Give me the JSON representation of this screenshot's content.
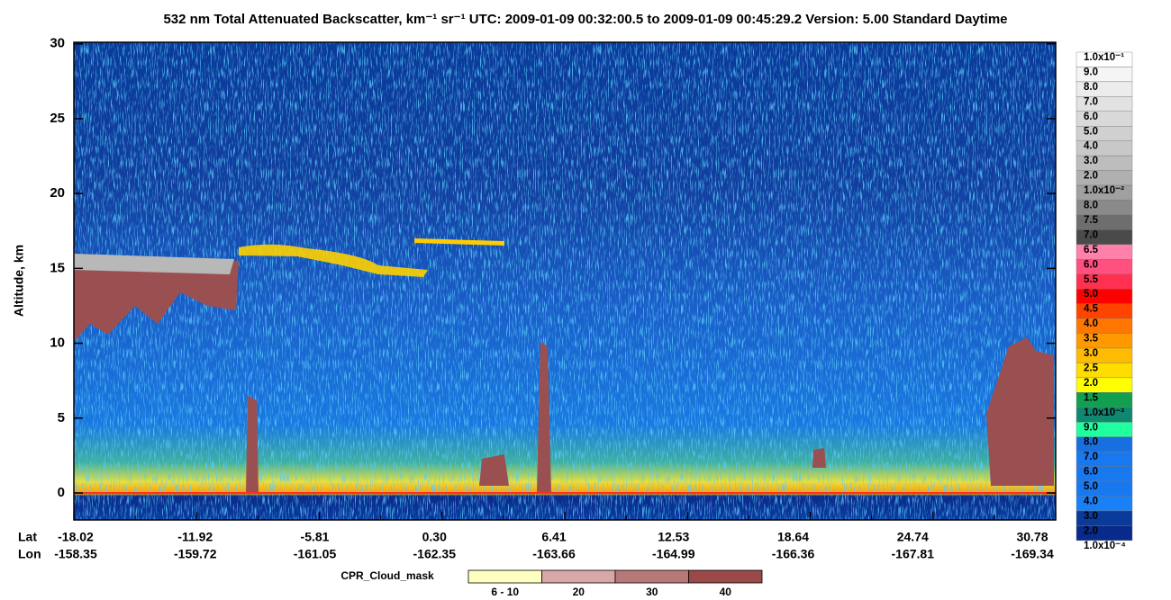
{
  "chart_data": {
    "type": "curtain",
    "title": "532 nm Total Attenuated Backscatter, km⁻¹ sr⁻¹    UTC:  2009-01-09 00:32:00.5  to  2009-01-09 00:45:29.2    Version: 5.00  Standard  Daytime",
    "y_label": "Altitude, km",
    "ylim": [
      -1.8,
      30.1
    ],
    "yticks": [
      0,
      5,
      10,
      15,
      20,
      25,
      30
    ],
    "x_row_labels": [
      "Lat",
      "Lon"
    ],
    "lat": [
      "-18.02",
      "-11.92",
      "-5.81",
      "0.30",
      "6.41",
      "12.53",
      "18.64",
      "24.74",
      "30.78"
    ],
    "lon": [
      "-158.35",
      "-159.72",
      "-161.05",
      "-162.35",
      "-163.66",
      "-164.99",
      "-166.36",
      "-167.81",
      "-169.34"
    ],
    "colorbar": {
      "labels": [
        "1.0x10⁻¹",
        "9.0",
        "8.0",
        "7.0",
        "6.0",
        "5.0",
        "4.0",
        "3.0",
        "2.0",
        "1.0x10⁻²",
        "8.0",
        "7.5",
        "7.0",
        "6.5",
        "6.0",
        "5.5",
        "5.0",
        "4.5",
        "4.0",
        "3.5",
        "3.0",
        "2.5",
        "2.0",
        "1.5",
        "1.0x10⁻³",
        "9.0",
        "8.0",
        "7.0",
        "6.0",
        "5.0",
        "4.0",
        "3.0",
        "2.0",
        "1.0x10⁻⁴"
      ],
      "colors": [
        "#ffffff",
        "#f5f5f5",
        "#ececec",
        "#e2e2e2",
        "#d9d9d9",
        "#d0d0d0",
        "#c8c8c8",
        "#bdbdbd",
        "#b0b0b0",
        "#a0a0a0",
        "#8a8a8a",
        "#6e6e6e",
        "#4a4a4a",
        "#ff80a8",
        "#ff5080",
        "#ff3050",
        "#ff0000",
        "#ff4400",
        "#ff7700",
        "#ff9900",
        "#ffbb00",
        "#ffdd00",
        "#ffff00",
        "#10a050",
        "#108870",
        "#20ffa0",
        "#1870e0",
        "#1878f0",
        "#1878f0",
        "#1878f0",
        "#1a80f8",
        "#0a3a9a",
        "#082a8a"
      ]
    },
    "cloud_mask": {
      "title": "CPR_Cloud_mask",
      "labels": [
        "6 - 10",
        "20",
        "30",
        "40"
      ],
      "colors": [
        "#ffffc0",
        "#d8a8a8",
        "#b87878",
        "#9a4848"
      ]
    }
  }
}
